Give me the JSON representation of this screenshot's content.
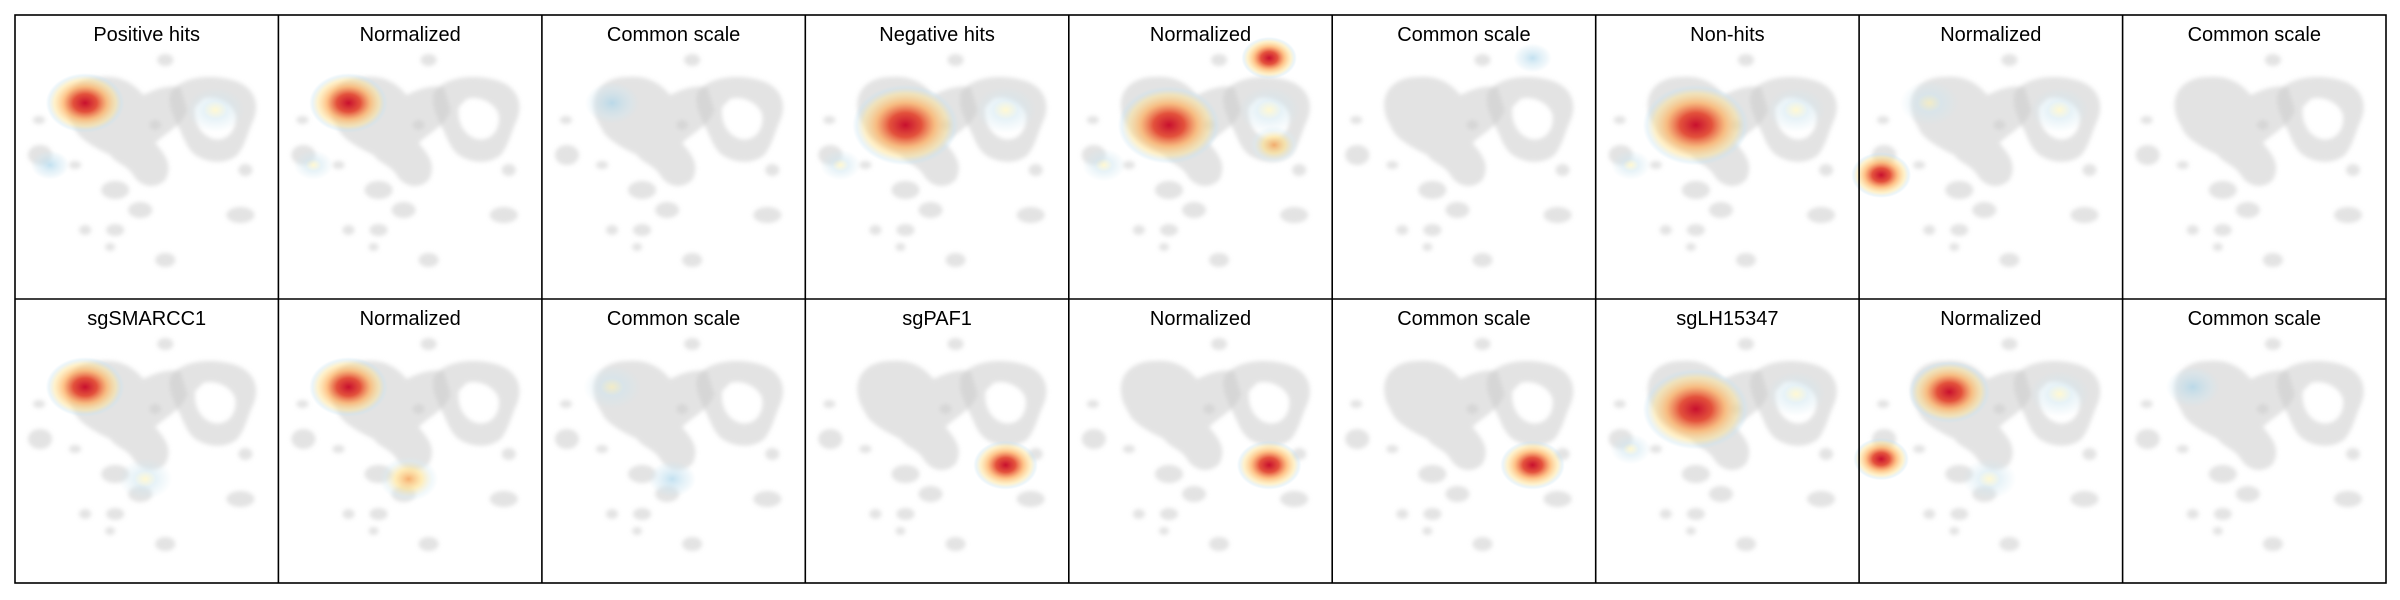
{
  "chart_data": {
    "type": "heatmap",
    "description_kind": "density overlays on UMAP embedding",
    "rows": 2,
    "cols": 9,
    "colors": {
      "background_cells": "#cccccc",
      "low": "#9ecae1",
      "mid": "#fee08b",
      "high": "#d7191c",
      "frame": "#000000"
    },
    "panels": [
      {
        "title": "Positive hits",
        "hotspots": [
          {
            "region": "upper-left lobe",
            "intensity": 1.0
          },
          {
            "region": "right ring",
            "intensity": 0.3
          },
          {
            "region": "lower-left cluster",
            "intensity": 0.15
          }
        ]
      },
      {
        "title": "Normalized",
        "hotspots": [
          {
            "region": "upper-left lobe",
            "intensity": 1.0
          },
          {
            "region": "lower-left cluster",
            "intensity": 0.2
          }
        ]
      },
      {
        "title": "Common scale",
        "hotspots": [
          {
            "region": "upper-left lobe",
            "intensity": 0.15
          }
        ]
      },
      {
        "title": "Negative hits",
        "hotspots": [
          {
            "region": "central body",
            "intensity": 1.0
          },
          {
            "region": "right ring",
            "intensity": 0.4
          },
          {
            "region": "lower-left cluster",
            "intensity": 0.25
          }
        ]
      },
      {
        "title": "Normalized",
        "hotspots": [
          {
            "region": "top-right island",
            "intensity": 1.0
          },
          {
            "region": "central body",
            "intensity": 0.9
          },
          {
            "region": "right-middle island",
            "intensity": 0.7
          },
          {
            "region": "right ring",
            "intensity": 0.4
          },
          {
            "region": "lower-left cluster",
            "intensity": 0.4
          }
        ]
      },
      {
        "title": "Common scale",
        "hotspots": [
          {
            "region": "top-right island",
            "intensity": 0.15
          }
        ]
      },
      {
        "title": "Non-hits",
        "hotspots": [
          {
            "region": "central body",
            "intensity": 1.0
          },
          {
            "region": "right ring",
            "intensity": 0.3
          },
          {
            "region": "lower-left cluster",
            "intensity": 0.2
          }
        ]
      },
      {
        "title": "Normalized",
        "hotspots": [
          {
            "region": "lower-left far",
            "intensity": 1.0
          },
          {
            "region": "upper-left lobe",
            "intensity": 0.3
          },
          {
            "region": "right ring",
            "intensity": 0.3
          }
        ]
      },
      {
        "title": "Common scale",
        "hotspots": []
      },
      {
        "title": "sgSMARCC1",
        "hotspots": [
          {
            "region": "upper-left lobe",
            "intensity": 1.0
          },
          {
            "region": "lower-center cluster",
            "intensity": 0.4
          }
        ]
      },
      {
        "title": "Normalized",
        "hotspots": [
          {
            "region": "upper-left lobe",
            "intensity": 1.0
          },
          {
            "region": "lower-center cluster",
            "intensity": 0.6
          }
        ]
      },
      {
        "title": "Common scale",
        "hotspots": [
          {
            "region": "upper-left lobe",
            "intensity": 0.25
          },
          {
            "region": "lower-center cluster",
            "intensity": 0.15
          }
        ]
      },
      {
        "title": "sgPAF1",
        "hotspots": [
          {
            "region": "right-lower island",
            "intensity": 1.0
          }
        ]
      },
      {
        "title": "Normalized",
        "hotspots": [
          {
            "region": "right-lower island",
            "intensity": 1.0
          }
        ]
      },
      {
        "title": "Common scale",
        "hotspots": [
          {
            "region": "right-lower island",
            "intensity": 1.0
          }
        ]
      },
      {
        "title": "sgLH15347",
        "hotspots": [
          {
            "region": "central body",
            "intensity": 1.0
          },
          {
            "region": "right ring",
            "intensity": 0.3
          },
          {
            "region": "lower-left cluster",
            "intensity": 0.25
          }
        ]
      },
      {
        "title": "Normalized",
        "hotspots": [
          {
            "region": "upper-center band",
            "intensity": 0.95
          },
          {
            "region": "lower-left far",
            "intensity": 0.8
          },
          {
            "region": "lower-center cluster",
            "intensity": 0.4
          },
          {
            "region": "right ring",
            "intensity": 0.35
          }
        ]
      },
      {
        "title": "Common scale",
        "hotspots": [
          {
            "region": "upper-left lobe",
            "intensity": 0.12
          }
        ]
      }
    ]
  }
}
